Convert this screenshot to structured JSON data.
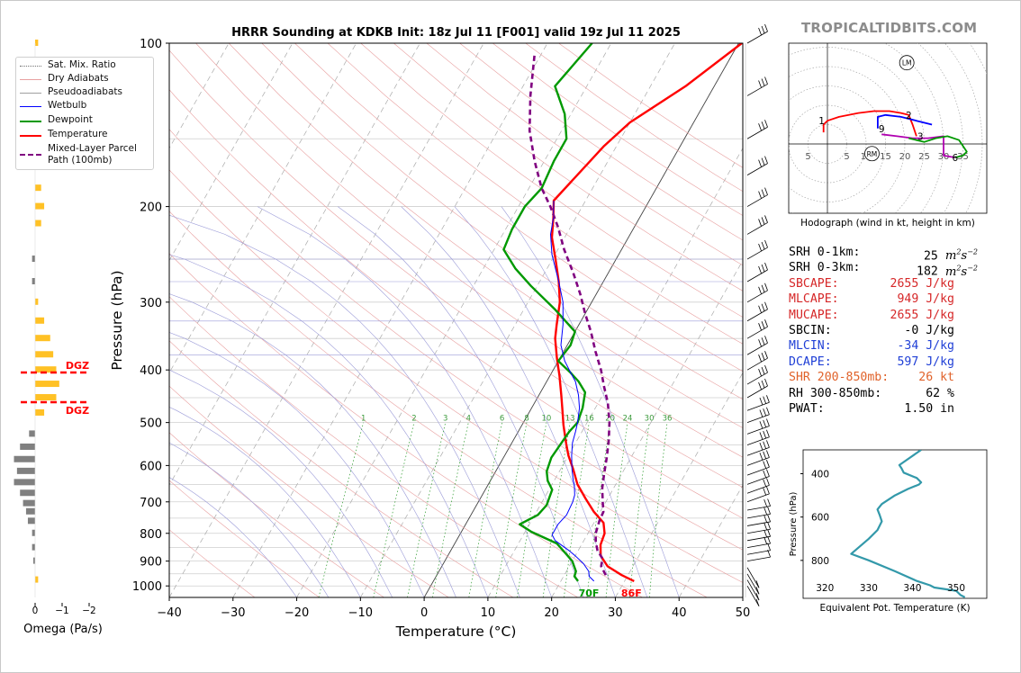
{
  "site_label": "TROPICALTIDBITS.COM",
  "chart_data": {
    "type": "line",
    "title": "HRRR Sounding at KDKB Init: 18z Jul 11 [F001] valid 19z Jul 11 2025",
    "xlabel": "Temperature (°C)",
    "ylabel": "Pressure (hPa)",
    "xlim": [
      -40,
      50
    ],
    "ylim": [
      1050,
      100
    ],
    "y_scale": "log",
    "x_ticks": [
      "−40",
      "−30",
      "−20",
      "−10",
      "0",
      "10",
      "20",
      "30",
      "40",
      "50"
    ],
    "y_ticks": [
      "100",
      "200",
      "300",
      "400",
      "500",
      "600",
      "700",
      "800",
      "900",
      "1000"
    ],
    "grid": true,
    "legend_position": "top-left",
    "legend": [
      "Sat. Mix. Ratio",
      "Dry Adiabats",
      "Pseudoadiabats",
      "Wetbulb",
      "Dewpoint",
      "Temperature",
      "Mixed-Layer Parcel Path (100mb)"
    ],
    "mixing_ratio_labels": [
      "1",
      "2",
      "3",
      "4",
      "6",
      "8",
      "10",
      "13",
      "16",
      "20",
      "24",
      "30",
      "36"
    ],
    "surface_temperature_label": "86F",
    "surface_dewpoint_label": "70F",
    "series": [
      {
        "name": "Temperature",
        "color": "#ff0000",
        "points": [
          [
            31.5,
            980
          ],
          [
            29,
            955
          ],
          [
            26,
            920
          ],
          [
            24,
            880
          ],
          [
            23,
            840
          ],
          [
            22.6,
            800
          ],
          [
            21.5,
            765
          ],
          [
            19,
            730
          ],
          [
            16.5,
            690
          ],
          [
            14,
            650
          ],
          [
            12,
            610
          ],
          [
            10,
            575
          ],
          [
            8.5,
            545
          ],
          [
            6.5,
            505
          ],
          [
            4.8,
            470
          ],
          [
            3.5,
            445
          ],
          [
            1.5,
            410
          ],
          [
            -0.5,
            380
          ],
          [
            -2.5,
            350
          ],
          [
            -3.5,
            330
          ],
          [
            -5,
            300
          ],
          [
            -7,
            275
          ],
          [
            -9.5,
            250
          ],
          [
            -12,
            228
          ],
          [
            -13.5,
            210
          ],
          [
            -15,
            195
          ],
          [
            -12,
            155
          ],
          [
            -10,
            140
          ],
          [
            -4.5,
            120
          ],
          [
            0.5,
            100
          ]
        ]
      },
      {
        "name": "Dewpoint",
        "color": "#009900",
        "points": [
          [
            22.7,
            980
          ],
          [
            21.7,
            960
          ],
          [
            21.5,
            940
          ],
          [
            20,
            900
          ],
          [
            18.2,
            870
          ],
          [
            16,
            835
          ],
          [
            11,
            795
          ],
          [
            8.5,
            770
          ],
          [
            10.5,
            740
          ],
          [
            11,
            710
          ],
          [
            10.5,
            665
          ],
          [
            9,
            640
          ],
          [
            8,
            615
          ],
          [
            7.5,
            580
          ],
          [
            8,
            520
          ],
          [
            8.5,
            500
          ],
          [
            8,
            470
          ],
          [
            7,
            440
          ],
          [
            5,
            420
          ],
          [
            3,
            405
          ],
          [
            0,
            385
          ],
          [
            0.5,
            360
          ],
          [
            0,
            340
          ],
          [
            -5,
            310
          ],
          [
            -11,
            280
          ],
          [
            -15,
            260
          ],
          [
            -18.5,
            240
          ],
          [
            -19,
            220
          ],
          [
            -19,
            200
          ],
          [
            -18,
            185
          ],
          [
            -18.5,
            165
          ],
          [
            -18.5,
            150
          ],
          [
            -21,
            135
          ],
          [
            -25,
            120
          ],
          [
            -23,
            100
          ]
        ]
      },
      {
        "name": "Wetbulb",
        "color": "#0000ff",
        "points": [
          [
            25.2,
            980
          ],
          [
            24,
            960
          ],
          [
            23.5,
            940
          ],
          [
            22,
            910
          ],
          [
            20,
            880
          ],
          [
            18.5,
            860
          ],
          [
            15.5,
            825
          ],
          [
            14.5,
            805
          ],
          [
            14.5,
            770
          ],
          [
            15,
            740
          ],
          [
            14.8,
            700
          ],
          [
            14.5,
            680
          ],
          [
            13.5,
            650
          ],
          [
            13,
            640
          ],
          [
            11.8,
            610
          ],
          [
            10.5,
            575
          ],
          [
            9.5,
            545
          ],
          [
            9,
            520
          ],
          [
            8.5,
            500
          ],
          [
            7.5,
            470
          ],
          [
            6.2,
            445
          ],
          [
            4.5,
            420
          ],
          [
            3,
            405
          ],
          [
            1,
            385
          ],
          [
            -1,
            360
          ],
          [
            -2.5,
            330
          ],
          [
            -4.5,
            300
          ],
          [
            -7,
            275
          ],
          [
            -10.5,
            245
          ],
          [
            -12.5,
            225
          ],
          [
            -13.5,
            210
          ],
          [
            -15,
            195
          ]
        ]
      },
      {
        "name": "Mixed-Layer Parcel Path (100mb)",
        "color": "#800080",
        "points": [
          [
            26.5,
            955
          ],
          [
            25,
            920
          ],
          [
            24.5,
            890
          ],
          [
            23,
            860
          ],
          [
            22,
            830
          ],
          [
            21.2,
            800
          ],
          [
            20.7,
            760
          ],
          [
            20.5,
            730
          ],
          [
            19.5,
            700
          ],
          [
            18.2,
            660
          ],
          [
            17.2,
            620
          ],
          [
            16.2,
            580
          ],
          [
            15,
            540
          ],
          [
            13.5,
            500
          ],
          [
            11.5,
            460
          ],
          [
            9.5,
            430
          ],
          [
            7.5,
            400
          ],
          [
            5,
            370
          ],
          [
            2.5,
            340
          ],
          [
            0,
            315
          ],
          [
            -2.5,
            290
          ],
          [
            -5.5,
            265
          ],
          [
            -9,
            240
          ],
          [
            -12,
            218
          ],
          [
            -15,
            200
          ],
          [
            -18,
            185
          ],
          [
            -21.5,
            165
          ],
          [
            -25,
            145
          ],
          [
            -28,
            125
          ],
          [
            -31,
            105
          ]
        ]
      }
    ],
    "dgz_labels": [
      "DGZ",
      "DGZ"
    ],
    "omega": {
      "xlabel": "Omega (Pa/s)",
      "ticks": [
        "2",
        "0",
        "−1",
        "−2"
      ],
      "levels": [
        {
          "p": 100,
          "omega": -0.05,
          "class": "ascent"
        },
        {
          "p": 185,
          "omega": -0.1,
          "class": "ascent"
        },
        {
          "p": 200,
          "omega": -0.15,
          "class": "ascent"
        },
        {
          "p": 215,
          "omega": -0.1,
          "class": "ascent"
        },
        {
          "p": 250,
          "omega": 0.05,
          "class": "descent"
        },
        {
          "p": 275,
          "omega": 0.05,
          "class": "descent"
        },
        {
          "p": 300,
          "omega": -0.05,
          "class": "ascent"
        },
        {
          "p": 325,
          "omega": -0.15,
          "class": "ascent"
        },
        {
          "p": 350,
          "omega": -0.25,
          "class": "ascent"
        },
        {
          "p": 375,
          "omega": -0.3,
          "class": "ascent"
        },
        {
          "p": 400,
          "omega": -0.35,
          "class": "ascent"
        },
        {
          "p": 425,
          "omega": -0.4,
          "class": "ascent"
        },
        {
          "p": 450,
          "omega": -0.35,
          "class": "ascent"
        },
        {
          "p": 480,
          "omega": -0.15,
          "class": "ascent"
        },
        {
          "p": 525,
          "omega": 0.1,
          "class": "descent"
        },
        {
          "p": 555,
          "omega": 0.25,
          "class": "descent"
        },
        {
          "p": 585,
          "omega": 0.35,
          "class": "descent"
        },
        {
          "p": 615,
          "omega": 0.3,
          "class": "descent"
        },
        {
          "p": 645,
          "omega": 0.35,
          "class": "descent"
        },
        {
          "p": 675,
          "omega": 0.25,
          "class": "descent"
        },
        {
          "p": 705,
          "omega": 0.2,
          "class": "descent"
        },
        {
          "p": 730,
          "omega": 0.15,
          "class": "descent"
        },
        {
          "p": 760,
          "omega": 0.12,
          "class": "descent"
        },
        {
          "p": 800,
          "omega": 0.05,
          "class": "descent"
        },
        {
          "p": 850,
          "omega": 0.05,
          "class": "descent"
        },
        {
          "p": 900,
          "omega": 0.03,
          "class": "descent"
        },
        {
          "p": 975,
          "omega": -0.05,
          "class": "ascent"
        }
      ]
    },
    "hodograph": {
      "caption": "Hodograph (wind in kt, height in km)",
      "ring_labels": [
        "5",
        "5",
        "10",
        "15",
        "20",
        "25",
        "30",
        "35"
      ],
      "markers": [
        "LM",
        "RM"
      ],
      "height_labels": [
        "1",
        "2",
        "3",
        "6",
        "9"
      ],
      "segments": [
        {
          "color": "#ff0000",
          "points": [
            [
              -1,
              3
            ],
            [
              -1,
              5
            ],
            [
              0,
              6
            ],
            [
              3,
              7
            ],
            [
              8,
              8
            ],
            [
              12,
              8.5
            ],
            [
              16,
              8.5
            ],
            [
              19,
              8
            ],
            [
              21,
              7.5
            ],
            [
              22,
              5
            ],
            [
              23,
              2
            ]
          ]
        },
        {
          "color": "#0000ff",
          "points": [
            [
              13,
              4
            ],
            [
              13,
              7
            ],
            [
              15,
              7.5
            ],
            [
              19,
              7
            ],
            [
              23,
              6
            ],
            [
              27,
              5
            ]
          ]
        },
        {
          "color": "#b000b0",
          "points": [
            [
              14,
              2.5
            ],
            [
              18,
              2
            ],
            [
              22,
              1.5
            ],
            [
              26,
              1.5
            ],
            [
              30,
              2
            ],
            [
              30,
              -3
            ],
            [
              33,
              -3.5
            ]
          ]
        },
        {
          "color": "#009900",
          "points": [
            [
              21,
              1.5
            ],
            [
              23,
              1
            ],
            [
              25,
              0.5
            ],
            [
              28,
              1.5
            ],
            [
              31,
              2
            ],
            [
              34,
              1
            ],
            [
              36,
              -2
            ],
            [
              35,
              -3
            ],
            [
              33,
              -3.5
            ]
          ]
        }
      ]
    },
    "theta_e": {
      "xlabel": "Equivalent Pot. Temperature (K)",
      "ylabel": "Pressure (hPa)",
      "xlim": [
        315,
        357
      ],
      "x_ticks": [
        "320",
        "330",
        "340",
        "350"
      ],
      "y_ticks": [
        "400",
        "600",
        "800"
      ],
      "points": [
        [
          342,
          290
        ],
        [
          337,
          360
        ],
        [
          337.5,
          375
        ],
        [
          338,
          395
        ],
        [
          341,
          420
        ],
        [
          342,
          440
        ],
        [
          341.5,
          450
        ],
        [
          339,
          470
        ],
        [
          336,
          500
        ],
        [
          333,
          540
        ],
        [
          332,
          565
        ],
        [
          332.5,
          590
        ],
        [
          333,
          620
        ],
        [
          332,
          660
        ],
        [
          330,
          700
        ],
        [
          326,
          770
        ],
        [
          330,
          800
        ],
        [
          336,
          850
        ],
        [
          341,
          895
        ],
        [
          344,
          915
        ],
        [
          345,
          925
        ],
        [
          350,
          940
        ],
        [
          351,
          960
        ],
        [
          352,
          970
        ]
      ]
    }
  },
  "stats": [
    {
      "label": "SRH 0-1km:",
      "value": "25",
      "unit": "m2s-2",
      "color": "#000000"
    },
    {
      "label": "SRH 0-3km:",
      "value": "182",
      "unit": "m2s-2",
      "color": "#000000"
    },
    {
      "label": "SBCAPE:",
      "value": "2655 J/kg",
      "unit": "",
      "color": "#d62728"
    },
    {
      "label": "MLCAPE:",
      "value": "949 J/kg",
      "unit": "",
      "color": "#d62728"
    },
    {
      "label": "MUCAPE:",
      "value": "2655 J/kg",
      "unit": "",
      "color": "#d62728"
    },
    {
      "label": "SBCIN:",
      "value": "-0 J/kg",
      "unit": "",
      "color": "#000000"
    },
    {
      "label": "MLCIN:",
      "value": "-34 J/kg",
      "unit": "",
      "color": "#1f3fd6"
    },
    {
      "label": "DCAPE:",
      "value": "597 J/kg",
      "unit": "",
      "color": "#1f3fd6"
    },
    {
      "label": "SHR 200-850mb:",
      "value": "26 kt",
      "unit": "",
      "color": "#e0622a"
    },
    {
      "label": "RH 300-850mb:",
      "value": "62 %",
      "unit": "",
      "color": "#000000"
    },
    {
      "label": "PWAT:",
      "value": "1.50 in",
      "unit": "",
      "color": "#000000"
    }
  ]
}
